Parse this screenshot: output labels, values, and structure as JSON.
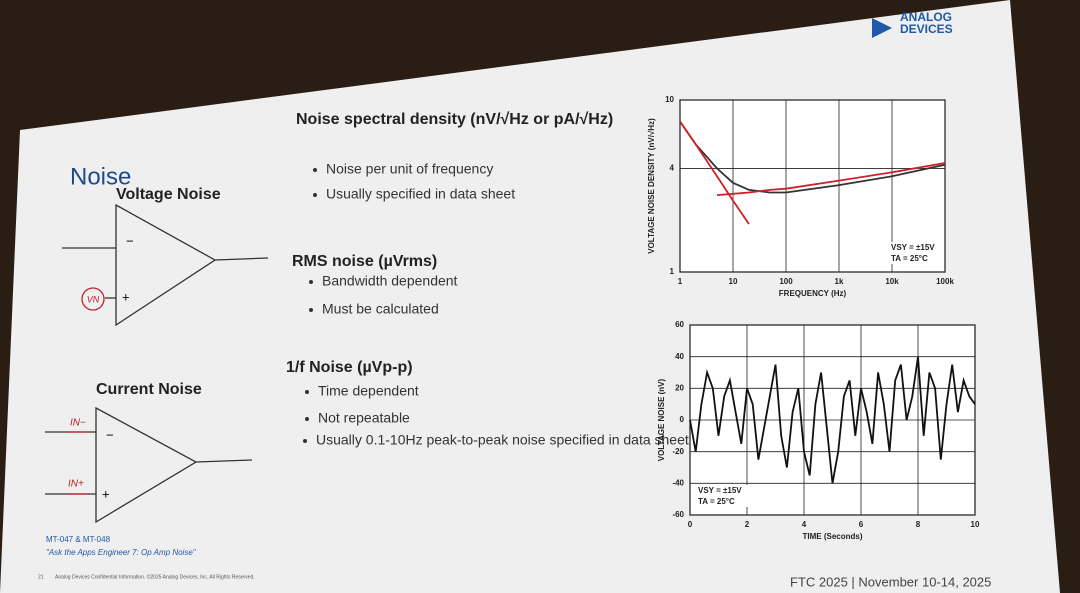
{
  "logo": {
    "line1": "ANALOG",
    "line2": "DEVICES"
  },
  "slide": {
    "title": "Noise",
    "voltage_noise": {
      "title": "Voltage Noise",
      "minus": "−",
      "plus": "+",
      "source": "VN"
    },
    "current_noise": {
      "title": "Current Noise",
      "minus": "−",
      "plus": "+",
      "source_minus": "IN−",
      "source_plus": "IN+"
    },
    "sections": [
      {
        "heading": "Noise spectral density (nV/√Hz or pA/√Hz)",
        "bullets": [
          "Noise per unit of frequency",
          "Usually specified in data sheet"
        ]
      },
      {
        "heading": "RMS noise (µVrms)",
        "bullets": [
          "Bandwidth dependent",
          "Must be calculated"
        ]
      },
      {
        "heading": "1/f Noise (µVp-p)",
        "bullets": [
          "Time dependent",
          "Not repeatable",
          "Usually 0.1-10Hz peak-to-peak noise specified in data sheet"
        ]
      }
    ],
    "links": [
      "MT-047 & MT-048",
      "\"Ask the Apps Engineer 7: Op Amp Noise\""
    ],
    "footer": {
      "page": "21",
      "legal": "Analog Devices Confidential Information. ©2025 Analog Devices, Inc. All Rights Reserved.",
      "event": "FTC 2025 | November 10-14, 2025"
    }
  },
  "chart_data": [
    {
      "type": "line",
      "xlabel": "FREQUENCY (Hz)",
      "ylabel": "VOLTAGE NOISE DENSITY (nV/√Hz)",
      "xlog": true,
      "ylog": true,
      "grid": true,
      "xlim": [
        1,
        100000
      ],
      "ylim": [
        1,
        10
      ],
      "xticks": [
        1,
        10,
        100,
        {
          "value": 1000,
          "label": "1k"
        },
        {
          "value": 10000,
          "label": "10k"
        },
        {
          "value": 100000,
          "label": "100k"
        }
      ],
      "yticks": [
        1,
        4,
        10
      ],
      "annotations": [
        "VSY = ±15V",
        "TA = 25°C"
      ],
      "x": [
        1,
        2,
        5,
        10,
        20,
        50,
        100,
        1000,
        10000,
        100000
      ],
      "series": [
        {
          "color": "#333333",
          "values": [
            7.5,
            5.5,
            4,
            3.3,
            3,
            2.9,
            2.9,
            3.2,
            3.6,
            4.2
          ]
        },
        {
          "color": "#d0202a",
          "values": [
            7.5,
            5.5,
            3.6,
            2.6,
            1.9,
            null,
            null,
            null,
            null,
            null
          ]
        },
        {
          "color": "#d0202a",
          "values": [
            null,
            null,
            2.8,
            2.85,
            2.9,
            3.0,
            3.05,
            3.4,
            3.8,
            4.3
          ]
        }
      ]
    },
    {
      "type": "line",
      "xlabel": "TIME (Seconds)",
      "ylabel": "VOLTAGE NOISE (nV)",
      "grid": true,
      "xlim": [
        0,
        10
      ],
      "ylim": [
        -60,
        60
      ],
      "xticks": [
        0,
        2,
        4,
        6,
        8,
        10
      ],
      "yticks": [
        -60,
        -40,
        -20,
        0,
        20,
        40,
        60
      ],
      "annotations": [
        "VSY = ±15V",
        "TA = 25°C"
      ],
      "x": [
        0,
        0.2,
        0.4,
        0.6,
        0.8,
        1,
        1.2,
        1.4,
        1.6,
        1.8,
        2,
        2.2,
        2.4,
        2.6,
        2.8,
        3,
        3.2,
        3.4,
        3.6,
        3.8,
        4,
        4.2,
        4.4,
        4.6,
        4.8,
        5,
        5.2,
        5.4,
        5.6,
        5.8,
        6,
        6.2,
        6.4,
        6.6,
        6.8,
        7,
        7.2,
        7.4,
        7.6,
        7.8,
        8,
        8.2,
        8.4,
        8.6,
        8.8,
        9,
        9.2,
        9.4,
        9.6,
        9.8,
        10
      ],
      "series": [
        {
          "color": "#111111",
          "values": [
            0,
            -20,
            10,
            30,
            20,
            -10,
            15,
            25,
            5,
            -15,
            20,
            10,
            -25,
            -5,
            15,
            35,
            -10,
            -30,
            5,
            20,
            -20,
            -35,
            10,
            30,
            -5,
            -40,
            -20,
            15,
            25,
            -10,
            20,
            5,
            -15,
            30,
            10,
            -20,
            25,
            35,
            0,
            15,
            40,
            -10,
            30,
            20,
            -25,
            10,
            35,
            5,
            25,
            15,
            10
          ]
        }
      ]
    }
  ]
}
